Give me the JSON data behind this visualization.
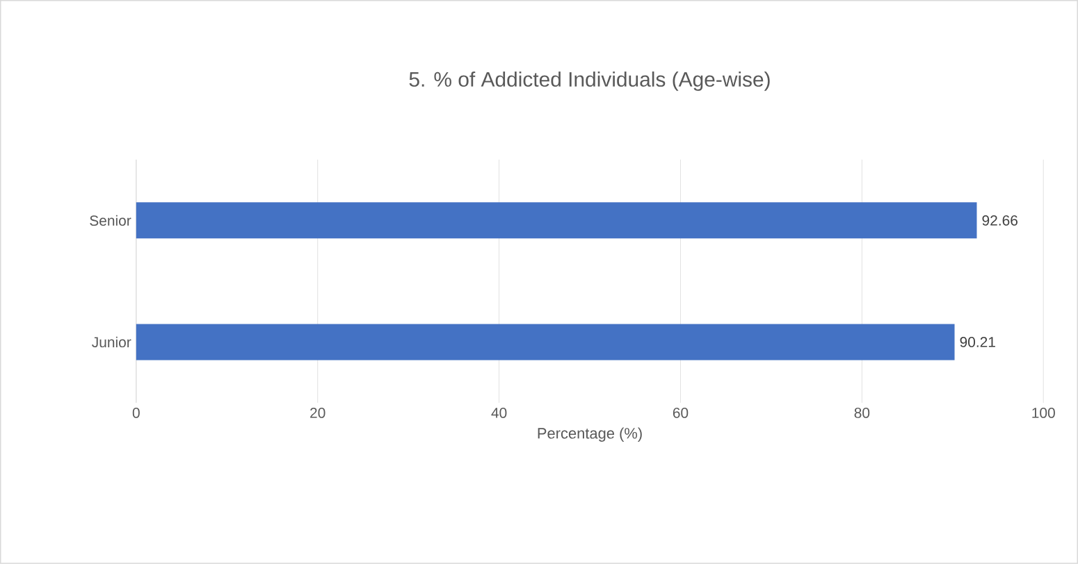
{
  "chart_data": {
    "type": "bar",
    "orientation": "horizontal",
    "title": "5. % of Addicted Individuals (Age-wise)",
    "xlabel": "Percentage (%)",
    "categories": [
      "Senior",
      "Junior"
    ],
    "values": [
      92.66,
      90.21
    ],
    "color": "#4472c4",
    "xlim": [
      0,
      100
    ],
    "xticks": [
      0,
      20,
      40,
      60,
      80,
      100
    ],
    "grid": "x",
    "data_labels": true
  }
}
